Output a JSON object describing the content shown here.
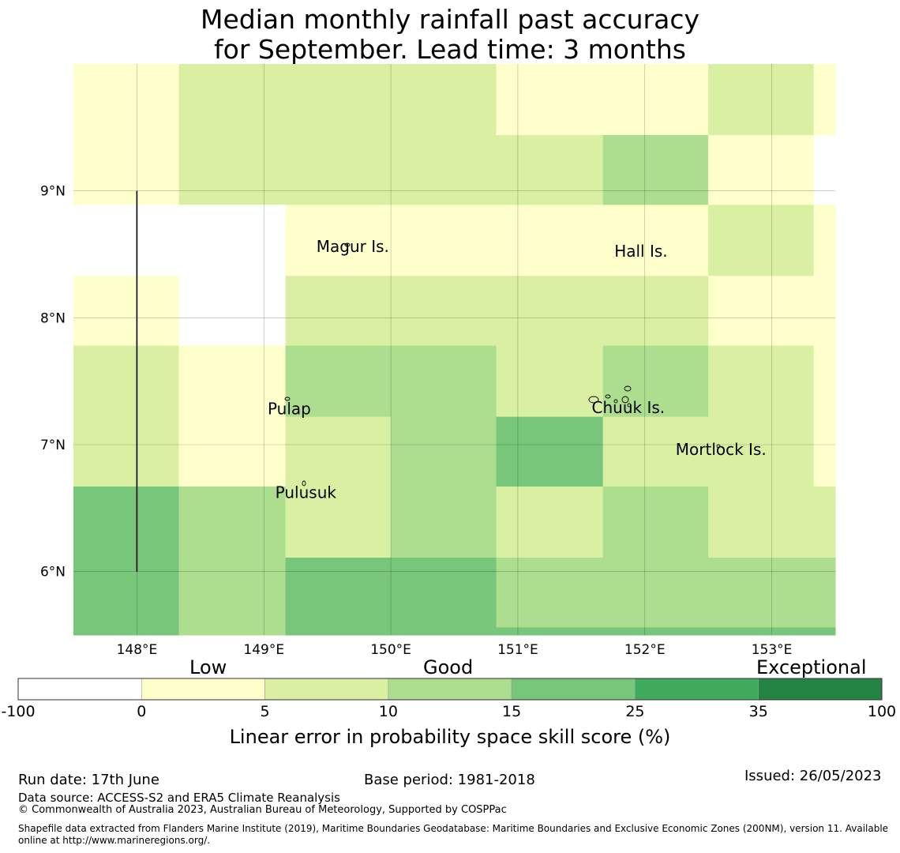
{
  "title": {
    "line1": "Median monthly rainfall past accuracy",
    "line2": "for September. Lead time: 3 months"
  },
  "map": {
    "lon_range": [
      147.5,
      153.5
    ],
    "lat_range": [
      5.5,
      10.0
    ],
    "lon_ticks": [
      {
        "value": 148,
        "label": "148°E"
      },
      {
        "value": 149,
        "label": "149°E"
      },
      {
        "value": 150,
        "label": "150°E"
      },
      {
        "value": 151,
        "label": "151°E"
      },
      {
        "value": 152,
        "label": "152°E"
      },
      {
        "value": 153,
        "label": "153°E"
      }
    ],
    "lat_ticks": [
      {
        "value": 9,
        "label": "9°N"
      },
      {
        "value": 8,
        "label": "8°N"
      },
      {
        "value": 7,
        "label": "7°N"
      },
      {
        "value": 6,
        "label": "6°N"
      }
    ],
    "grid": true,
    "place_labels": [
      {
        "name": "Magur Is.",
        "lon": 149.7,
        "lat": 8.52
      },
      {
        "name": "Hall Is.",
        "lon": 151.97,
        "lat": 8.48
      },
      {
        "name": "Pulap",
        "lon": 149.2,
        "lat": 7.24
      },
      {
        "name": "Chuuk Is.",
        "lon": 151.87,
        "lat": 7.25
      },
      {
        "name": "Mortlock Is.",
        "lon": 152.6,
        "lat": 6.92
      },
      {
        "name": "Pulusuk",
        "lon": 149.33,
        "lat": 6.58
      }
    ],
    "boundary_line": {
      "lon": 148.0,
      "lat_from": 6.0,
      "lat_to": 9.0
    }
  },
  "chart_data": {
    "type": "heatmap",
    "value_unit": "skill score category (%)",
    "lon_edges": [
      147.5,
      148.33,
      149.17,
      150.0,
      150.83,
      151.67,
      152.5,
      153.33,
      153.5
    ],
    "lat_rows": [
      {
        "lat_top": 10.0,
        "lat_bottom": 9.44,
        "bins": [
          "0-5",
          "5-10",
          "5-10",
          "5-10",
          "0-5",
          "0-5",
          "5-10",
          "0-5"
        ]
      },
      {
        "lat_top": 9.44,
        "lat_bottom": 8.89,
        "bins": [
          "0-5",
          "5-10",
          "5-10",
          "5-10",
          "5-10",
          "10-15",
          "0-5",
          "none"
        ]
      },
      {
        "lat_top": 8.89,
        "lat_bottom": 8.33,
        "bins": [
          "none",
          "none",
          "0-5",
          "0-5",
          "0-5",
          "0-5",
          "5-10",
          "0-5"
        ]
      },
      {
        "lat_top": 8.33,
        "lat_bottom": 7.78,
        "bins": [
          "0-5",
          "none",
          "5-10",
          "5-10",
          "5-10",
          "5-10",
          "0-5",
          "0-5"
        ]
      },
      {
        "lat_top": 7.78,
        "lat_bottom": 7.22,
        "bins": [
          "5-10",
          "0-5",
          "10-15",
          "10-15",
          "5-10",
          "10-15",
          "5-10",
          "0-5"
        ]
      },
      {
        "lat_top": 7.22,
        "lat_bottom": 6.67,
        "bins": [
          "5-10",
          "0-5",
          "5-10",
          "10-15",
          "15-25",
          "5-10",
          "5-10",
          "0-5"
        ]
      },
      {
        "lat_top": 6.67,
        "lat_bottom": 6.11,
        "bins": [
          "15-25",
          "10-15",
          "5-10",
          "10-15",
          "5-10",
          "10-15",
          "5-10",
          "5-10"
        ]
      },
      {
        "lat_top": 6.11,
        "lat_bottom": 5.56,
        "bins": [
          "15-25",
          "10-15",
          "15-25",
          "15-25",
          "10-15",
          "10-15",
          "10-15",
          "10-15"
        ]
      },
      {
        "lat_top": 5.56,
        "lat_bottom": 5.5,
        "bins": [
          "15-25",
          "10-15",
          "15-25",
          "15-25",
          "15-25",
          "15-25",
          "15-25",
          "15-25"
        ]
      }
    ]
  },
  "colorbar": {
    "bins": [
      {
        "key": "-100-0",
        "from": "-100",
        "to": "0",
        "color": "#ffffff"
      },
      {
        "key": "0-5",
        "from": "0",
        "to": "5",
        "color": "#ffffcc"
      },
      {
        "key": "5-10",
        "from": "5",
        "to": "10",
        "color": "#d9f0a3"
      },
      {
        "key": "10-15",
        "from": "10",
        "to": "15",
        "color": "#addd8e"
      },
      {
        "key": "15-25",
        "from": "15",
        "to": "25",
        "color": "#78c679"
      },
      {
        "key": "25-35",
        "from": "25",
        "to": "35",
        "color": "#41ab5d"
      },
      {
        "key": "35-100",
        "from": "35",
        "to": "100",
        "color": "#238443"
      }
    ],
    "tick_labels": [
      "-100",
      "0",
      "5",
      "10",
      "15",
      "25",
      "35",
      "100"
    ],
    "category_labels": {
      "low": "Low",
      "good": "Good",
      "exceptional": "Exceptional"
    },
    "axis_label": "Linear error in probability space skill score (%)"
  },
  "footer": {
    "run_date": "Run date: 17th June",
    "base_period": "Base period: 1981-2018",
    "issued": "Issued: 26/05/2023",
    "data_source": "Data source: ACCESS-S2 and ERA5 Climate Reanalysis",
    "copyright": "© Commonwealth of Australia 2023, Australian Bureau of Meteorology, Supported by COSPPac",
    "shapefile_line1": "Shapefile data extracted from Flanders Marine Institute (2019), Maritime Boundaries Geodatabase: Maritime Boundaries and Exclusive Economic Zones (200NM), version 11. Available",
    "shapefile_line2": "online at http://www.marineregions.org/."
  }
}
